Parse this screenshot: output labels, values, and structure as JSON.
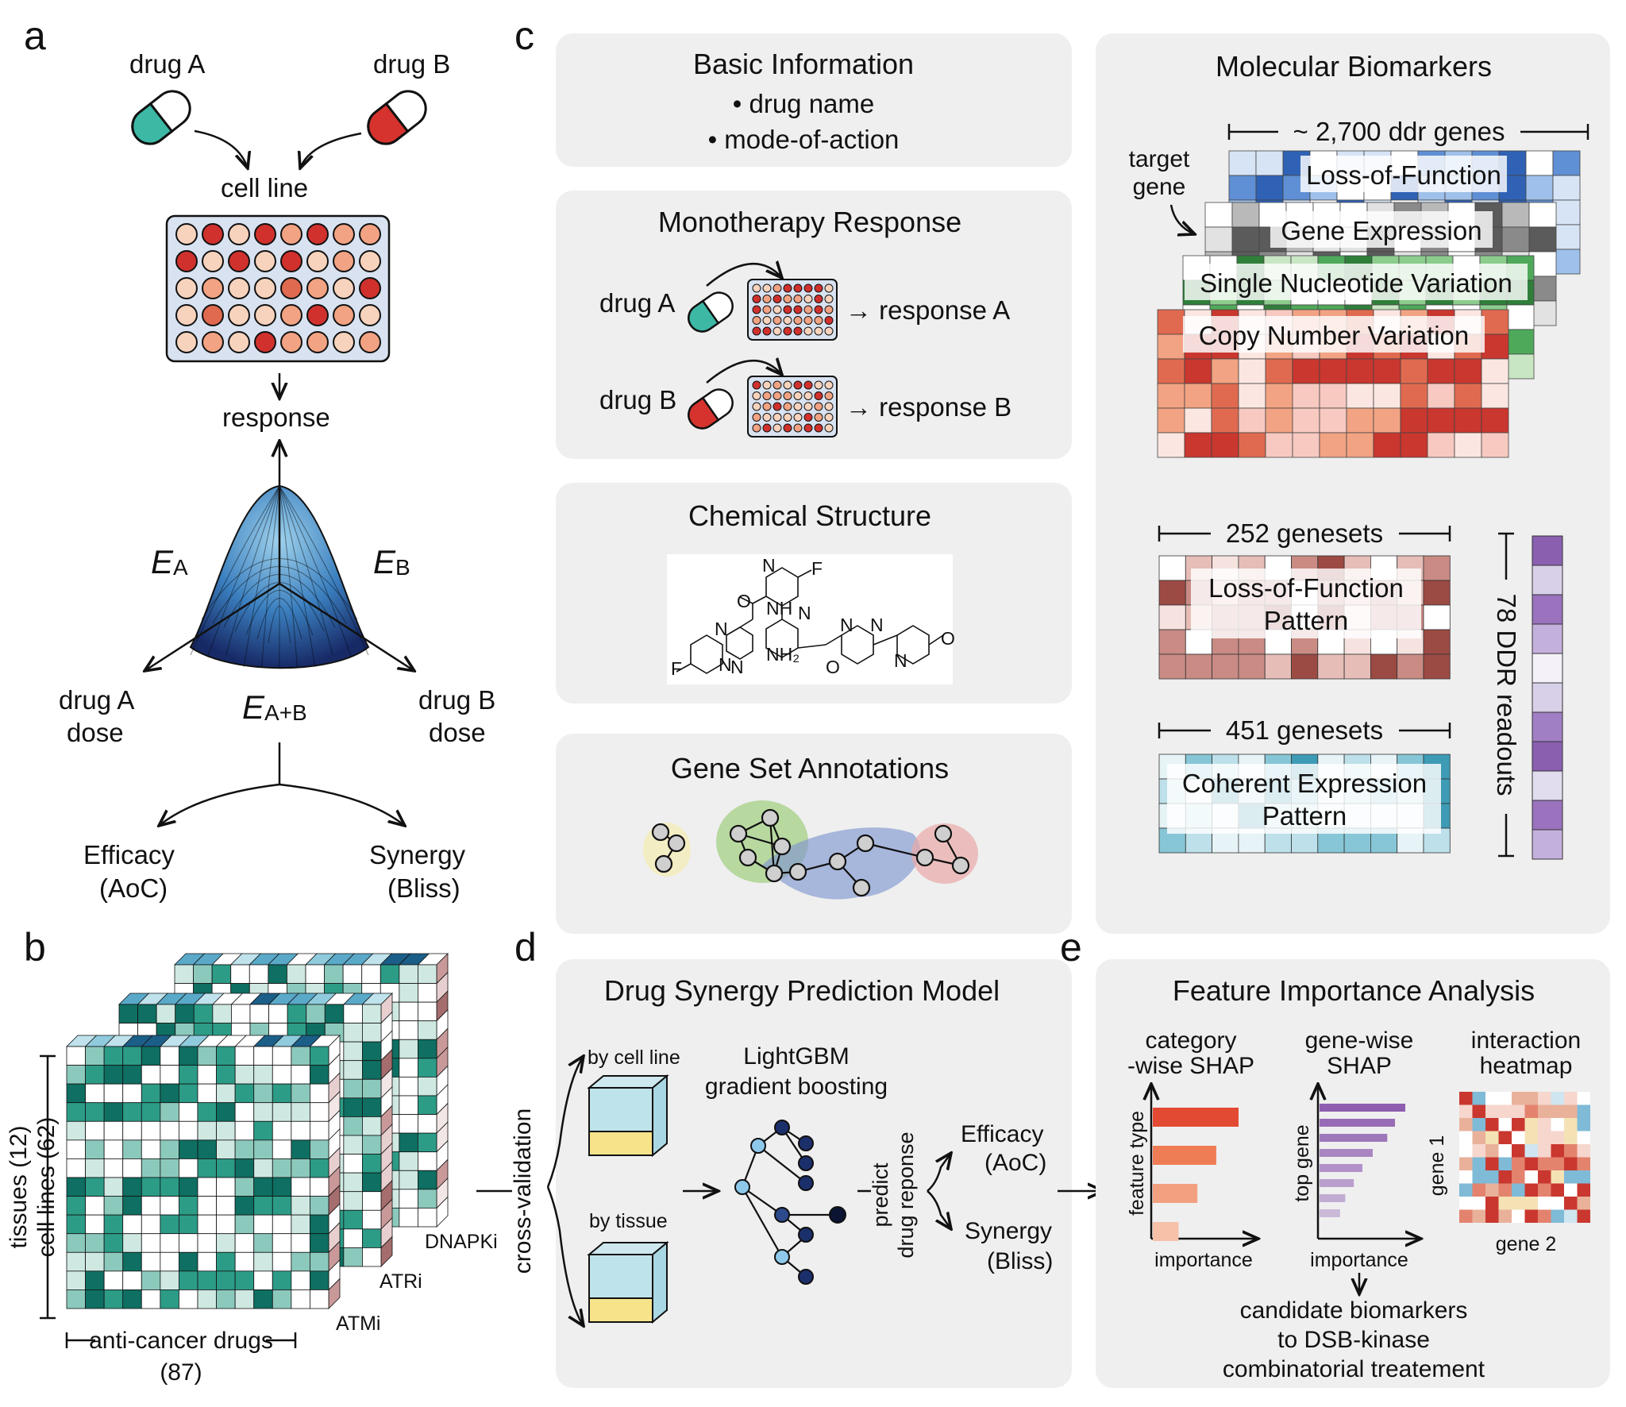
{
  "panels": {
    "a": "a",
    "b": "b",
    "c": "c",
    "d": "d",
    "e": "e"
  },
  "panel_a": {
    "drug_a": "drug A",
    "drug_b": "drug B",
    "cell_line": "cell line",
    "response": "response",
    "e_a": "E",
    "e_a_sub": "A",
    "e_b": "E",
    "e_b_sub": "B",
    "e_ab": "E",
    "e_ab_sub": "A+B",
    "drug_a_dose": [
      "drug A",
      "dose"
    ],
    "drug_b_dose": [
      "drug B",
      "dose"
    ],
    "efficacy": [
      "Efficacy",
      "(AoC)"
    ],
    "synergy": [
      "Synergy",
      "(Bliss)"
    ],
    "colors": {
      "drug_a": "#3cb8a5",
      "drug_b": "#d6332e",
      "plate": "#d8e2f0"
    }
  },
  "panel_b": {
    "ylabel_tissues": "tissues (12)",
    "ylabel_cells": "cell lines (62)",
    "xlabel": "anti-cancer drugs",
    "xlabel_count": "(87)",
    "layers": [
      "ATMi",
      "ATRi",
      "DNAPKi"
    ],
    "colors": {
      "teal": "#0e8c7a",
      "side": "#c9a3a3"
    }
  },
  "panel_c": {
    "basic": {
      "title": "Basic Information",
      "items": [
        "• drug name",
        "• mode-of-action"
      ]
    },
    "mono": {
      "title": "Monotherapy Response",
      "drug_a": "drug A",
      "drug_b": "drug B",
      "resp_a": "→ response A",
      "resp_b": "→ response B"
    },
    "chem": {
      "title": "Chemical Structure",
      "atoms": [
        "N",
        "F",
        "O",
        "NH",
        "N",
        "N",
        "N",
        "NH₂",
        "F",
        "N",
        "N",
        "O",
        "N",
        "N",
        "O"
      ]
    },
    "geneset": {
      "title": "Gene Set Annotations"
    },
    "bio": {
      "title": "Molecular Biomarkers",
      "ddr_genes": "~ 2,700 ddr genes",
      "target_gene": [
        "target",
        "gene"
      ],
      "layers": [
        "Loss-of-Function",
        "Gene Expression",
        "Single Nucleotide Variation",
        "Copy Number Variation"
      ],
      "genesets_252": "252 genesets",
      "lof_pattern": [
        "Loss-of-Function",
        "Pattern"
      ],
      "genesets_451": "451 genesets",
      "coh_pattern": [
        "Coherent Expression",
        "Pattern"
      ],
      "ddr_readouts": "78 DDR readouts",
      "colors": {
        "lof": "#2f62b5",
        "expr": "#8a8a8a",
        "snv": "#3c9e48",
        "cnv": "#d9534a",
        "purple": "#8a5fb0"
      }
    }
  },
  "panel_d": {
    "title": "Drug Synergy Prediction Model",
    "cv": "cross-validation",
    "by_cell_line": "by cell line",
    "by_tissue": "by tissue",
    "model": [
      "LightGBM",
      "gradient boosting"
    ],
    "predict": [
      "predict",
      "drug reponse"
    ],
    "efficacy": [
      "Efficacy",
      "(AoC)"
    ],
    "synergy": [
      "Synergy",
      "(Bliss)"
    ]
  },
  "panel_e": {
    "title": "Feature Importance Analysis",
    "cat_shap": [
      "category",
      "-wise SHAP"
    ],
    "gene_shap": [
      "gene-wise",
      "SHAP"
    ],
    "heatmap": [
      "interaction",
      "heatmap"
    ],
    "feature_type": "feature type",
    "top_gene": "top gene",
    "importance": "importance",
    "gene1": "gene 1",
    "gene2": "gene 2",
    "candidates": [
      "candidate biomarkers",
      "to DSB-kinase",
      "combinatorial treatement"
    ],
    "cat_values": [
      1.0,
      0.74,
      0.52,
      0.3
    ],
    "gene_values": [
      1.0,
      0.88,
      0.79,
      0.62,
      0.5,
      0.4,
      0.3,
      0.24
    ],
    "colors": {
      "cat": [
        "#e34a33",
        "#ee7c55",
        "#f2a080",
        "#f6c1a8"
      ],
      "gene": "#8e5db0"
    }
  }
}
